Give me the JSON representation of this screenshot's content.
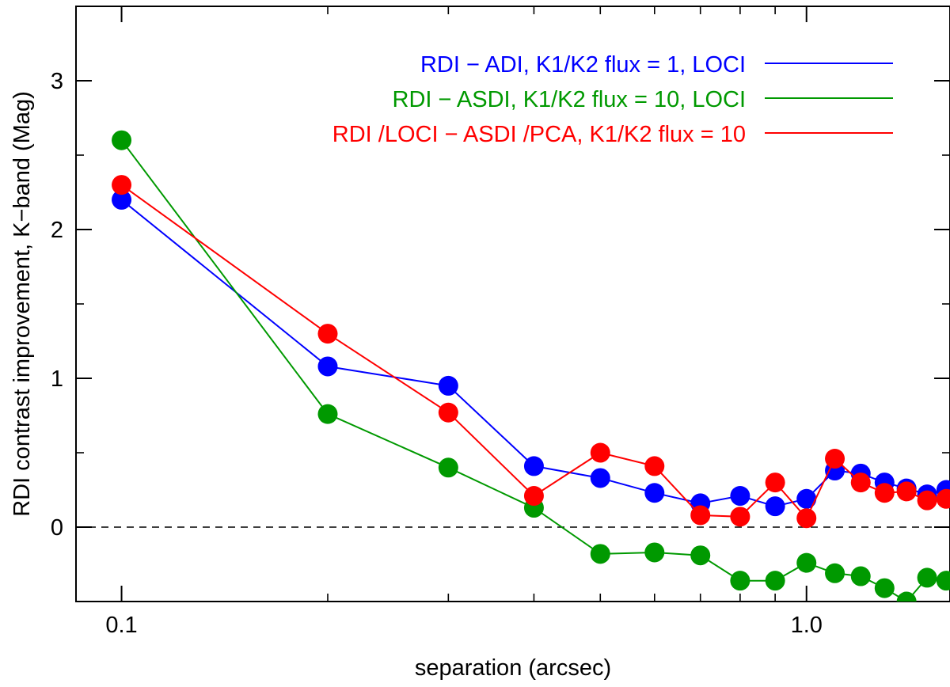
{
  "chart_data": {
    "type": "line",
    "xscale": "log",
    "xlim": [
      0.0858,
      1.62
    ],
    "ylim": [
      -0.5,
      3.5
    ],
    "xlabel": "separation (arcsec)",
    "ylabel": "RDI contrast improvement, K−band (Mag)",
    "x_ticks": [
      {
        "value": 0.1,
        "label": "0.1"
      },
      {
        "value": 1.0,
        "label": "1.0"
      }
    ],
    "y_ticks": [
      {
        "value": 0,
        "label": "0"
      },
      {
        "value": 1,
        "label": "1"
      },
      {
        "value": 2,
        "label": "2"
      },
      {
        "value": 3,
        "label": "3"
      }
    ],
    "reference_line": {
      "y": 0,
      "style": "dashed"
    },
    "legend_position": "top-right",
    "x": [
      0.1,
      0.2,
      0.3,
      0.4,
      0.5,
      0.6,
      0.7,
      0.8,
      0.9,
      1.0,
      1.1,
      1.2,
      1.3,
      1.4,
      1.5,
      1.6
    ],
    "series": [
      {
        "name": "RDI − ADI, K1/K2 flux = 1, LOCI",
        "color": "#0000ff",
        "values": [
          2.2,
          1.08,
          0.95,
          0.41,
          0.33,
          0.23,
          0.16,
          0.21,
          0.14,
          0.19,
          0.38,
          0.36,
          0.3,
          0.26,
          0.22,
          0.25
        ]
      },
      {
        "name": "RDI − ASDI, K1/K2 flux = 10, LOCI",
        "color": "#009900",
        "values": [
          2.6,
          0.76,
          0.4,
          0.13,
          -0.18,
          -0.17,
          -0.19,
          -0.36,
          -0.36,
          -0.24,
          -0.31,
          -0.33,
          -0.41,
          -0.5,
          -0.34,
          -0.36
        ]
      },
      {
        "name": "RDI /LOCI − ASDI /PCA, K1/K2 flux = 10",
        "color": "#ff0000",
        "values": [
          2.3,
          1.3,
          0.77,
          0.21,
          0.5,
          0.41,
          0.08,
          0.07,
          0.3,
          0.06,
          0.46,
          0.3,
          0.23,
          0.24,
          0.18,
          0.19
        ]
      }
    ]
  }
}
